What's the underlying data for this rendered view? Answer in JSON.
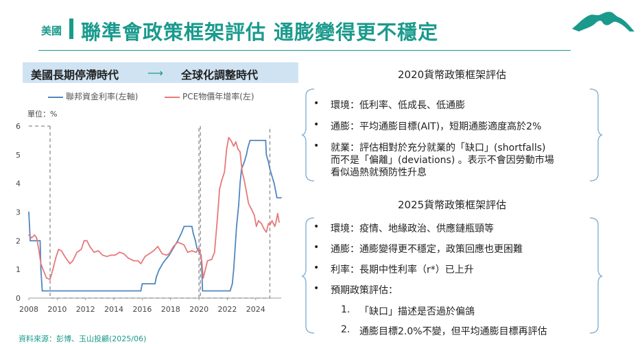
{
  "header": {
    "tag": "美國",
    "title": "聯準會政策框架評估 通膨變得更不穩定"
  },
  "era_band": {
    "left_label": "美國長期停滯時代",
    "arrow": "⟶",
    "right_label": "全球化調整時代"
  },
  "chart_data": {
    "type": "line",
    "unit_label": "單位：%",
    "xlim": [
      2008,
      2025.8
    ],
    "ylim": [
      0,
      6
    ],
    "x_ticks": [
      "2008",
      "2010",
      "2012",
      "2014",
      "2016",
      "2018",
      "2020",
      "2022",
      "2024"
    ],
    "y_ticks": [
      "0",
      "1",
      "2",
      "3",
      "4",
      "5",
      "6"
    ],
    "grid": false,
    "legend_position": "top",
    "dashed_boxes": [
      {
        "x_start": 2009.5,
        "x_end": 2020.0,
        "y_top": 6
      },
      {
        "x_start": 2020.1,
        "x_end": 2025.0,
        "y_top": 6
      }
    ],
    "series": [
      {
        "name": "聯邦資金利率(左軸)",
        "color": "#4f86c0",
        "points": [
          [
            2008.0,
            3.0
          ],
          [
            2008.1,
            2.0
          ],
          [
            2008.8,
            2.0
          ],
          [
            2008.85,
            1.0
          ],
          [
            2008.95,
            0.25
          ],
          [
            2015.9,
            0.25
          ],
          [
            2016.0,
            0.5
          ],
          [
            2016.9,
            0.5
          ],
          [
            2017.0,
            0.75
          ],
          [
            2017.2,
            1.0
          ],
          [
            2017.5,
            1.25
          ],
          [
            2017.9,
            1.5
          ],
          [
            2018.2,
            1.75
          ],
          [
            2018.5,
            2.0
          ],
          [
            2018.75,
            2.25
          ],
          [
            2018.95,
            2.5
          ],
          [
            2019.5,
            2.5
          ],
          [
            2019.6,
            2.25
          ],
          [
            2019.75,
            2.0
          ],
          [
            2019.85,
            1.75
          ],
          [
            2020.15,
            1.5
          ],
          [
            2020.2,
            1.0
          ],
          [
            2020.25,
            0.25
          ],
          [
            2022.2,
            0.25
          ],
          [
            2022.35,
            0.5
          ],
          [
            2022.45,
            1.0
          ],
          [
            2022.55,
            1.75
          ],
          [
            2022.65,
            2.5
          ],
          [
            2022.8,
            3.25
          ],
          [
            2022.9,
            4.0
          ],
          [
            2023.0,
            4.5
          ],
          [
            2023.2,
            4.75
          ],
          [
            2023.35,
            5.0
          ],
          [
            2023.45,
            5.25
          ],
          [
            2023.6,
            5.5
          ],
          [
            2024.7,
            5.5
          ],
          [
            2024.75,
            5.0
          ],
          [
            2024.9,
            4.75
          ],
          [
            2025.0,
            4.5
          ],
          [
            2025.3,
            4.0
          ],
          [
            2025.5,
            3.5
          ],
          [
            2025.8,
            3.5
          ]
        ]
      },
      {
        "name": "PCE物價年增率(左)",
        "color": "#e8787a",
        "points": [
          [
            2008.0,
            2.2
          ],
          [
            2008.2,
            2.1
          ],
          [
            2008.4,
            2.2
          ],
          [
            2008.55,
            2.1
          ],
          [
            2008.7,
            1.7
          ],
          [
            2008.85,
            1.2
          ],
          [
            2009.0,
            1.0
          ],
          [
            2009.25,
            0.7
          ],
          [
            2009.5,
            0.65
          ],
          [
            2009.7,
            1.0
          ],
          [
            2009.9,
            1.4
          ],
          [
            2010.1,
            1.7
          ],
          [
            2010.3,
            1.65
          ],
          [
            2010.6,
            1.4
          ],
          [
            2010.9,
            1.2
          ],
          [
            2011.1,
            1.3
          ],
          [
            2011.4,
            1.6
          ],
          [
            2011.7,
            1.7
          ],
          [
            2011.9,
            2.0
          ],
          [
            2012.1,
            2.0
          ],
          [
            2012.3,
            1.8
          ],
          [
            2012.6,
            1.6
          ],
          [
            2012.9,
            1.65
          ],
          [
            2013.2,
            1.5
          ],
          [
            2013.5,
            1.45
          ],
          [
            2013.8,
            1.5
          ],
          [
            2014.1,
            1.5
          ],
          [
            2014.4,
            1.6
          ],
          [
            2014.7,
            1.55
          ],
          [
            2015.0,
            1.4
          ],
          [
            2015.4,
            1.3
          ],
          [
            2015.7,
            1.3
          ],
          [
            2015.9,
            1.2
          ],
          [
            2016.2,
            1.45
          ],
          [
            2016.5,
            1.55
          ],
          [
            2016.8,
            1.65
          ],
          [
            2017.1,
            1.8
          ],
          [
            2017.4,
            1.55
          ],
          [
            2017.7,
            1.5
          ],
          [
            2017.9,
            1.55
          ],
          [
            2018.2,
            1.8
          ],
          [
            2018.5,
            1.95
          ],
          [
            2018.75,
            1.9
          ],
          [
            2018.95,
            1.85
          ],
          [
            2019.2,
            1.6
          ],
          [
            2019.5,
            1.65
          ],
          [
            2019.8,
            1.6
          ],
          [
            2020.0,
            1.75
          ],
          [
            2020.2,
            1.3
          ],
          [
            2020.3,
            0.7
          ],
          [
            2020.4,
            0.9
          ],
          [
            2020.6,
            1.3
          ],
          [
            2020.9,
            1.35
          ],
          [
            2021.1,
            1.6
          ],
          [
            2021.3,
            2.8
          ],
          [
            2021.45,
            3.8
          ],
          [
            2021.6,
            4.1
          ],
          [
            2021.8,
            4.4
          ],
          [
            2021.95,
            5.2
          ],
          [
            2022.1,
            5.6
          ],
          [
            2022.25,
            5.5
          ],
          [
            2022.45,
            5.3
          ],
          [
            2022.6,
            5.45
          ],
          [
            2022.75,
            5.2
          ],
          [
            2022.9,
            5.1
          ],
          [
            2023.05,
            4.4
          ],
          [
            2023.2,
            4.1
          ],
          [
            2023.35,
            3.7
          ],
          [
            2023.5,
            3.3
          ],
          [
            2023.7,
            3.1
          ],
          [
            2023.9,
            2.9
          ],
          [
            2024.05,
            2.5
          ],
          [
            2024.2,
            2.7
          ],
          [
            2024.4,
            2.6
          ],
          [
            2024.6,
            2.4
          ],
          [
            2024.75,
            2.3
          ],
          [
            2024.9,
            2.6
          ],
          [
            2025.0,
            2.55
          ],
          [
            2025.15,
            2.7
          ],
          [
            2025.25,
            2.6
          ],
          [
            2025.35,
            2.5
          ],
          [
            2025.45,
            2.7
          ],
          [
            2025.55,
            2.95
          ],
          [
            2025.65,
            2.65
          ]
        ]
      }
    ]
  },
  "source": "資料來源：彭博、玉山投顧(2025/06)",
  "framework_2020": {
    "title": "2020貨幣政策框架評估",
    "items": [
      {
        "lines": [
          "環境：低利率、低成長、低通膨"
        ]
      },
      {
        "lines": [
          "通膨：平均通膨目標(AIT)，短期通膨適度高於2%"
        ]
      },
      {
        "lines": [
          "就業：評估相對於充分就業的「缺口」(shortfalls)",
          "而不是「偏離」(deviations) 。表示不會因勞動市場",
          "看似過熱就預防性升息"
        ]
      }
    ]
  },
  "framework_2025": {
    "title": "2025貨幣政策框架評估",
    "items": [
      {
        "lines": [
          "環境：疫情、地緣政治、供應鏈瓶頸等"
        ]
      },
      {
        "lines": [
          "通膨：通膨變得更不穩定，政策回應也更困難"
        ]
      },
      {
        "lines": [
          "利率：長期中性利率（r*）已上升"
        ]
      },
      {
        "lines": [
          "預期政策評估："
        ]
      }
    ],
    "sub_items": [
      {
        "num": "1.",
        "text": "「缺口」描述是否過於偏鴿"
      },
      {
        "num": "2.",
        "text": "通膨目標2.0%不變，但平均通膨目標再評估"
      }
    ]
  },
  "bullet_char": "•",
  "colors": {
    "accent": "#1a9a8c",
    "band": "#cfe3f3",
    "brace": "#8ab5d8"
  }
}
